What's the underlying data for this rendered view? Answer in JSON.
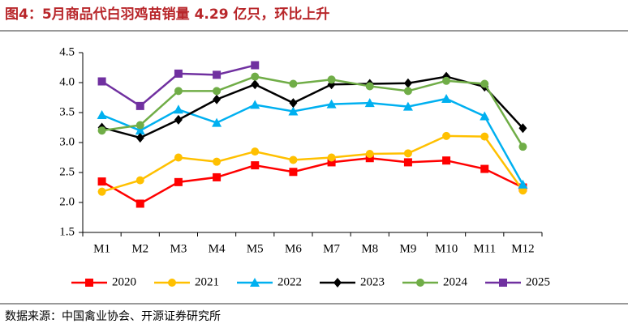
{
  "chart_data": {
    "type": "line",
    "title": "图4：5月商品代白羽鸡苗销量 4.29 亿只，环比上升",
    "source": "数据来源：中国禽业协会、开源证券研究所",
    "categories": [
      "M1",
      "M2",
      "M3",
      "M4",
      "M5",
      "M6",
      "M7",
      "M8",
      "M9",
      "M10",
      "M11",
      "M12"
    ],
    "ylim": [
      1.5,
      4.5
    ],
    "yticks": [
      1.5,
      {
        "value": 2,
        "label": "2.0"
      },
      2.5,
      {
        "value": 3,
        "label": "3.0"
      },
      3.5,
      {
        "value": 4,
        "label": "4.0"
      },
      4.5
    ],
    "grid": false,
    "legend": "bottom",
    "series": [
      {
        "name": "2020",
        "color": "#ff0000",
        "marker": "square",
        "values": [
          2.35,
          1.98,
          2.34,
          2.42,
          2.62,
          2.51,
          2.67,
          2.74,
          2.67,
          2.7,
          2.56,
          2.25
        ]
      },
      {
        "name": "2021",
        "color": "#ffc000",
        "marker": "circle",
        "values": [
          2.18,
          2.37,
          2.75,
          2.68,
          2.85,
          2.71,
          2.75,
          2.81,
          2.82,
          3.11,
          3.1,
          2.2
        ]
      },
      {
        "name": "2022",
        "color": "#00b0f0",
        "marker": "triangle",
        "values": [
          3.46,
          3.2,
          3.55,
          3.33,
          3.63,
          3.52,
          3.64,
          3.66,
          3.6,
          3.73,
          3.44,
          2.3
        ]
      },
      {
        "name": "2023",
        "color": "#000000",
        "marker": "diamond",
        "values": [
          3.25,
          3.08,
          3.38,
          3.72,
          3.97,
          3.66,
          3.97,
          3.98,
          3.99,
          4.1,
          3.93,
          3.24
        ]
      },
      {
        "name": "2024",
        "color": "#70ad47",
        "marker": "circle",
        "values": [
          3.2,
          3.29,
          3.86,
          3.86,
          4.1,
          3.98,
          4.05,
          3.94,
          3.86,
          4.03,
          3.98,
          2.93
        ]
      },
      {
        "name": "2025",
        "color": "#7030a0",
        "marker": "square",
        "values": [
          4.02,
          3.61,
          4.15,
          4.13,
          4.29,
          null,
          null,
          null,
          null,
          null,
          null,
          null
        ]
      }
    ]
  }
}
